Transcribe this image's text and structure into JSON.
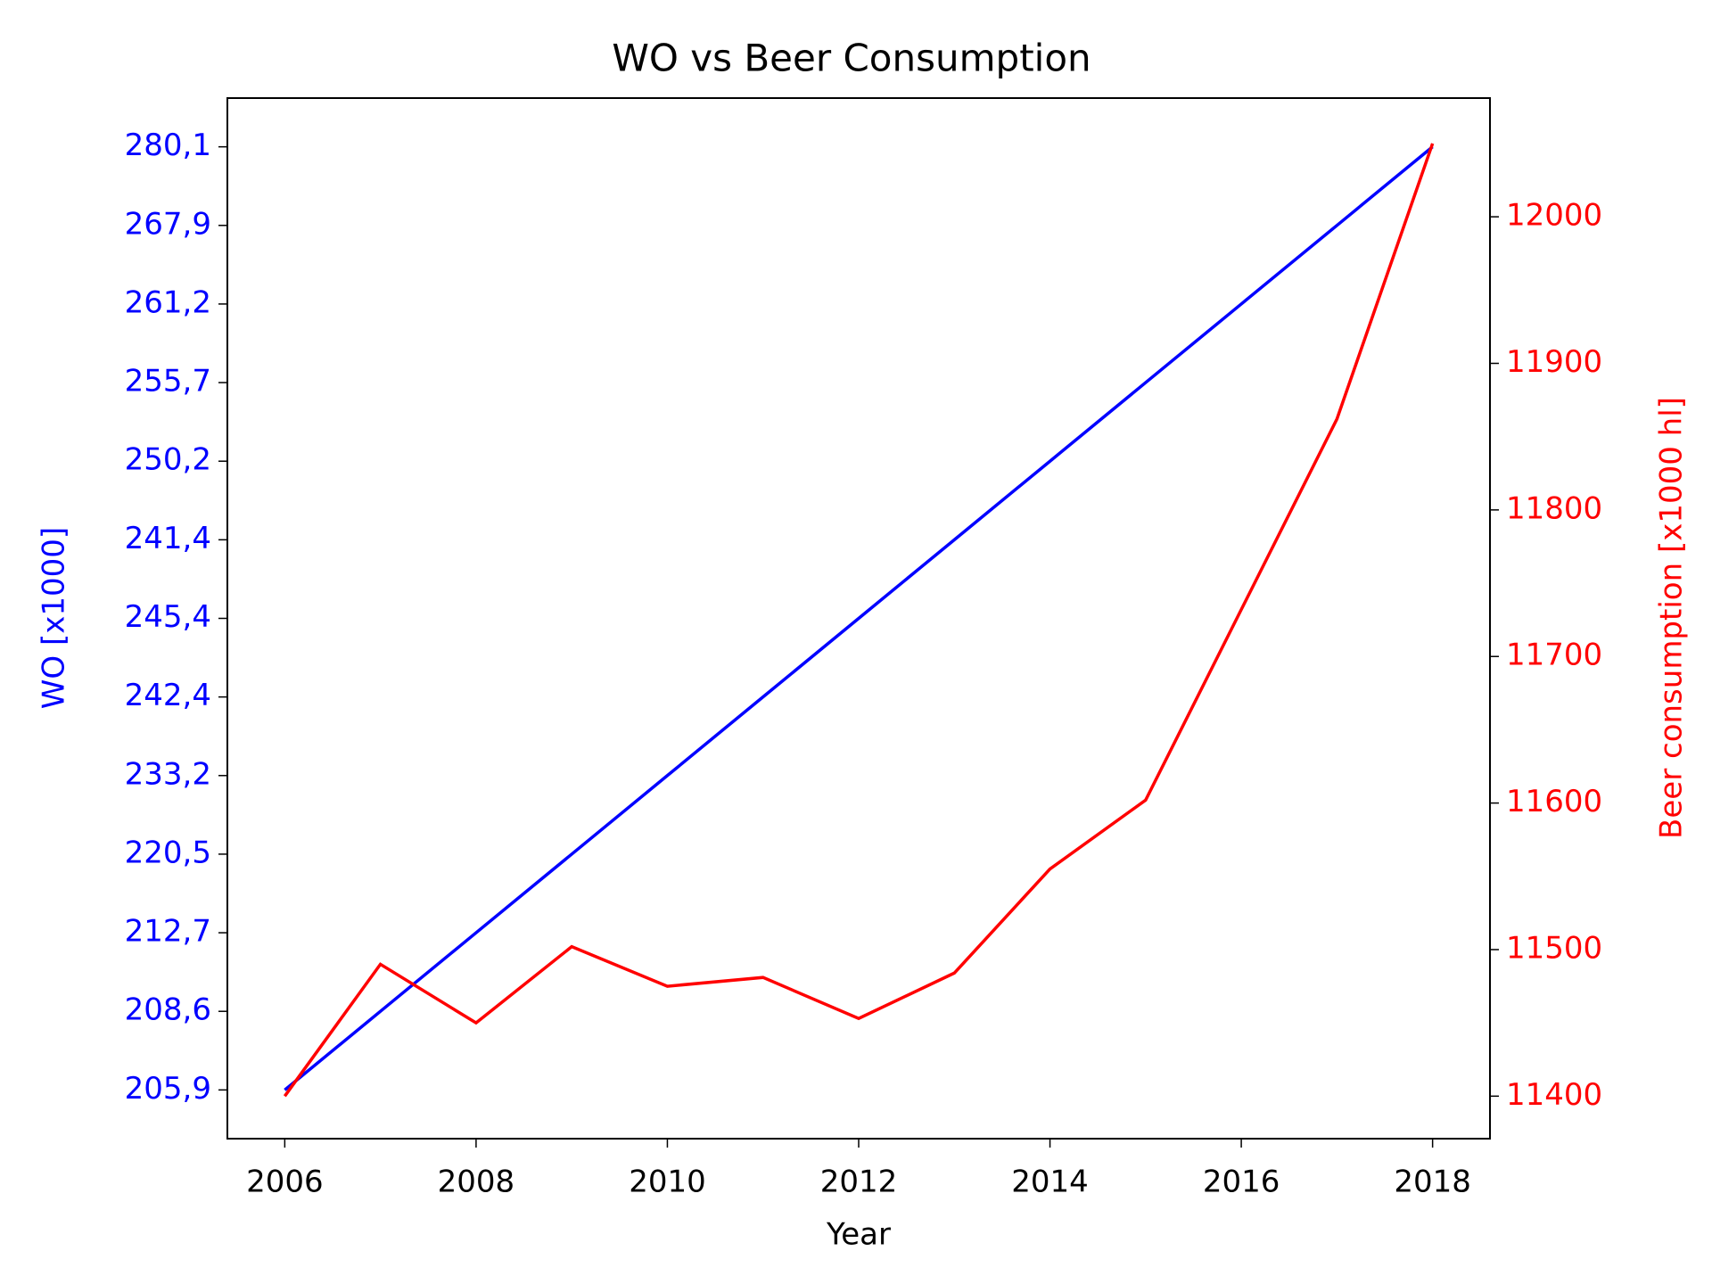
{
  "chart_data": {
    "type": "line",
    "title": "WO vs Beer Consumption",
    "xlabel": "Year",
    "ylabel": "WO [x1000]",
    "y2label": "Beer consumption [x1000 hl]",
    "x": [
      2006,
      2007,
      2008,
      2009,
      2010,
      2011,
      2012,
      2013,
      2014,
      2015,
      2016,
      2017,
      2018
    ],
    "xlim": [
      2005.4,
      2018.6
    ],
    "xticks": [
      2006,
      2008,
      2010,
      2012,
      2014,
      2016,
      2018
    ],
    "ycategories": [
      "205,9",
      "208,6",
      "212,7",
      "220,5",
      "233,2",
      "242,4",
      "245,4",
      "241,4",
      "250,2",
      "255,7",
      "261,2",
      "267,9",
      "280,1"
    ],
    "y2lim": [
      11371,
      12081
    ],
    "y2ticks": [
      11400,
      11500,
      11600,
      11700,
      11800,
      11900,
      12000
    ],
    "series": [
      {
        "color": "#0000ff",
        "values": [
          "205,9",
          "208,6",
          "212,7",
          "220,5",
          "233,2",
          "242,4",
          "245,4",
          "241,4",
          "250,2",
          "255,7",
          "261,2",
          "267,9",
          "280,1"
        ]
      },
      {
        "color": "#ff0000",
        "axis": "y2",
        "values": [
          11400,
          11490,
          11450,
          11502,
          11475,
          11481,
          11453,
          11484,
          11555,
          11602,
          11732,
          11862,
          12050
        ]
      }
    ]
  }
}
